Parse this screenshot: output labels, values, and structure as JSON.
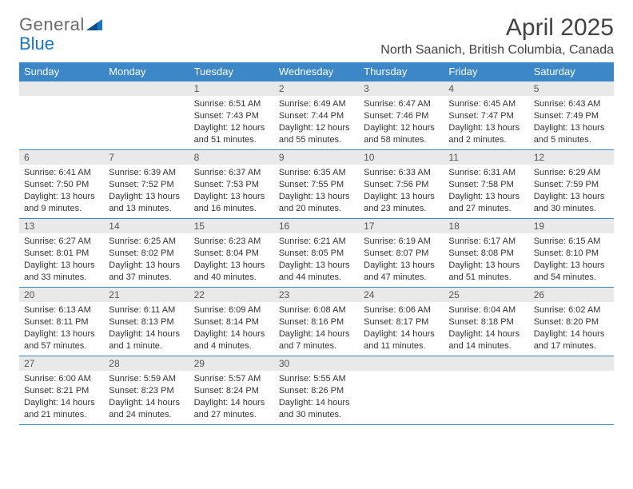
{
  "logo": {
    "text1": "General",
    "text2": "Blue"
  },
  "colors": {
    "header_bg": "#3b87c8",
    "header_text": "#ffffff",
    "daynum_bg": "#e9e9e9",
    "row_border": "#3b87c8",
    "logo_gray": "#6a6a6a",
    "logo_blue": "#1976c4",
    "title_color": "#424242"
  },
  "title": "April 2025",
  "location": "North Saanich, British Columbia, Canada",
  "day_headers": [
    "Sunday",
    "Monday",
    "Tuesday",
    "Wednesday",
    "Thursday",
    "Friday",
    "Saturday"
  ],
  "weeks": [
    [
      {
        "blank": true
      },
      {
        "blank": true
      },
      {
        "n": "1",
        "sunrise": "6:51 AM",
        "sunset": "7:43 PM",
        "daylight": "12 hours and 51 minutes."
      },
      {
        "n": "2",
        "sunrise": "6:49 AM",
        "sunset": "7:44 PM",
        "daylight": "12 hours and 55 minutes."
      },
      {
        "n": "3",
        "sunrise": "6:47 AM",
        "sunset": "7:46 PM",
        "daylight": "12 hours and 58 minutes."
      },
      {
        "n": "4",
        "sunrise": "6:45 AM",
        "sunset": "7:47 PM",
        "daylight": "13 hours and 2 minutes."
      },
      {
        "n": "5",
        "sunrise": "6:43 AM",
        "sunset": "7:49 PM",
        "daylight": "13 hours and 5 minutes."
      }
    ],
    [
      {
        "n": "6",
        "sunrise": "6:41 AM",
        "sunset": "7:50 PM",
        "daylight": "13 hours and 9 minutes."
      },
      {
        "n": "7",
        "sunrise": "6:39 AM",
        "sunset": "7:52 PM",
        "daylight": "13 hours and 13 minutes."
      },
      {
        "n": "8",
        "sunrise": "6:37 AM",
        "sunset": "7:53 PM",
        "daylight": "13 hours and 16 minutes."
      },
      {
        "n": "9",
        "sunrise": "6:35 AM",
        "sunset": "7:55 PM",
        "daylight": "13 hours and 20 minutes."
      },
      {
        "n": "10",
        "sunrise": "6:33 AM",
        "sunset": "7:56 PM",
        "daylight": "13 hours and 23 minutes."
      },
      {
        "n": "11",
        "sunrise": "6:31 AM",
        "sunset": "7:58 PM",
        "daylight": "13 hours and 27 minutes."
      },
      {
        "n": "12",
        "sunrise": "6:29 AM",
        "sunset": "7:59 PM",
        "daylight": "13 hours and 30 minutes."
      }
    ],
    [
      {
        "n": "13",
        "sunrise": "6:27 AM",
        "sunset": "8:01 PM",
        "daylight": "13 hours and 33 minutes."
      },
      {
        "n": "14",
        "sunrise": "6:25 AM",
        "sunset": "8:02 PM",
        "daylight": "13 hours and 37 minutes."
      },
      {
        "n": "15",
        "sunrise": "6:23 AM",
        "sunset": "8:04 PM",
        "daylight": "13 hours and 40 minutes."
      },
      {
        "n": "16",
        "sunrise": "6:21 AM",
        "sunset": "8:05 PM",
        "daylight": "13 hours and 44 minutes."
      },
      {
        "n": "17",
        "sunrise": "6:19 AM",
        "sunset": "8:07 PM",
        "daylight": "13 hours and 47 minutes."
      },
      {
        "n": "18",
        "sunrise": "6:17 AM",
        "sunset": "8:08 PM",
        "daylight": "13 hours and 51 minutes."
      },
      {
        "n": "19",
        "sunrise": "6:15 AM",
        "sunset": "8:10 PM",
        "daylight": "13 hours and 54 minutes."
      }
    ],
    [
      {
        "n": "20",
        "sunrise": "6:13 AM",
        "sunset": "8:11 PM",
        "daylight": "13 hours and 57 minutes."
      },
      {
        "n": "21",
        "sunrise": "6:11 AM",
        "sunset": "8:13 PM",
        "daylight": "14 hours and 1 minute."
      },
      {
        "n": "22",
        "sunrise": "6:09 AM",
        "sunset": "8:14 PM",
        "daylight": "14 hours and 4 minutes."
      },
      {
        "n": "23",
        "sunrise": "6:08 AM",
        "sunset": "8:16 PM",
        "daylight": "14 hours and 7 minutes."
      },
      {
        "n": "24",
        "sunrise": "6:06 AM",
        "sunset": "8:17 PM",
        "daylight": "14 hours and 11 minutes."
      },
      {
        "n": "25",
        "sunrise": "6:04 AM",
        "sunset": "8:18 PM",
        "daylight": "14 hours and 14 minutes."
      },
      {
        "n": "26",
        "sunrise": "6:02 AM",
        "sunset": "8:20 PM",
        "daylight": "14 hours and 17 minutes."
      }
    ],
    [
      {
        "n": "27",
        "sunrise": "6:00 AM",
        "sunset": "8:21 PM",
        "daylight": "14 hours and 21 minutes."
      },
      {
        "n": "28",
        "sunrise": "5:59 AM",
        "sunset": "8:23 PM",
        "daylight": "14 hours and 24 minutes."
      },
      {
        "n": "29",
        "sunrise": "5:57 AM",
        "sunset": "8:24 PM",
        "daylight": "14 hours and 27 minutes."
      },
      {
        "n": "30",
        "sunrise": "5:55 AM",
        "sunset": "8:26 PM",
        "daylight": "14 hours and 30 minutes."
      },
      {
        "blank": true
      },
      {
        "blank": true
      },
      {
        "blank": true
      }
    ]
  ],
  "labels": {
    "sunrise_prefix": "Sunrise: ",
    "sunset_prefix": "Sunset: ",
    "daylight_prefix": "Daylight: "
  }
}
